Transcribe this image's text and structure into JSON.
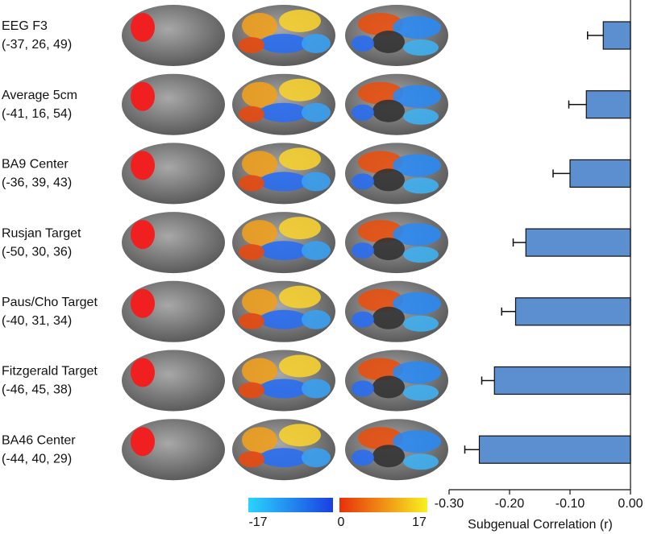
{
  "chart_data": {
    "type": "bar",
    "orientation": "horizontal",
    "x_label": "Subgenual Correlation (r)",
    "categories": [
      "EEG F3",
      "Average 5cm",
      "BA9 Center",
      "Rusjan Target",
      "Paus/Cho Target",
      "Fitzgerald Target",
      "BA46 Center"
    ],
    "coordinates": [
      "(-37, 26, 49)",
      "(-41, 16, 54)",
      "(-36, 39, 43)",
      "(-50, 30, 36)",
      "(-40, 31, 34)",
      "(-46, 45, 38)",
      "(-44, 40, 29)"
    ],
    "values": [
      -0.045,
      -0.073,
      -0.1,
      -0.173,
      -0.19,
      -0.225,
      -0.25
    ],
    "errors": [
      0.026,
      0.029,
      0.028,
      0.021,
      0.023,
      0.021,
      0.024
    ],
    "color": "#5b8fcf",
    "xlim": [
      -0.3,
      0
    ],
    "xticks": [
      {
        "value": -0.3,
        "label": "-0.30"
      },
      {
        "value": -0.2,
        "label": "-0.20"
      },
      {
        "value": -0.1,
        "label": "-0.10"
      },
      {
        "value": 0,
        "label": "0.00"
      }
    ],
    "colorbar": {
      "lim": [
        -17,
        17
      ],
      "ticks": [
        -17,
        0,
        17
      ],
      "negative_colors": [
        "#2ad4ff",
        "#1a3fe0"
      ],
      "positive_colors": [
        "#e8300a",
        "#f8f020"
      ]
    }
  }
}
